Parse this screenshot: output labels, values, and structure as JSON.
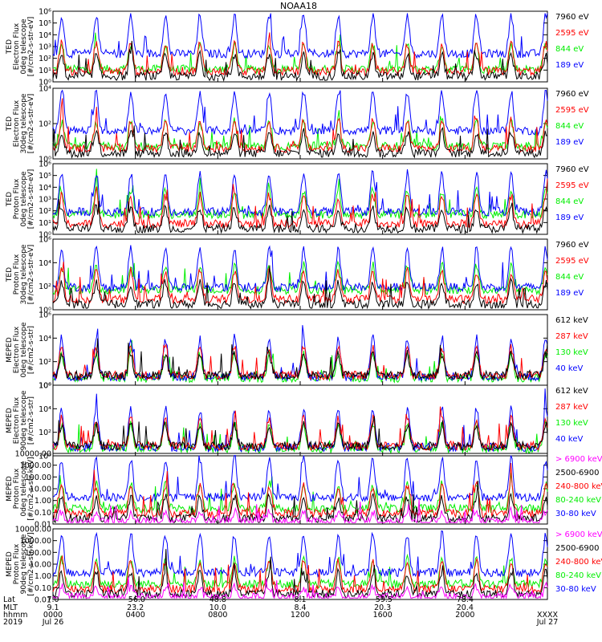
{
  "title": "NOAA18",
  "colors": {
    "black": "#000000",
    "red": "#ff0000",
    "green": "#00ee00",
    "blue": "#0000ff",
    "magenta": "#ff00ff"
  },
  "panels": [
    {
      "ylabel": [
        "TED",
        "Electron Flux",
        "0deg telescope",
        "[#/cm2-s-str-eV]"
      ],
      "yticks": [
        "10⁶",
        "10⁵",
        "10⁴",
        "10³",
        "10²",
        "10¹",
        "10⁰"
      ],
      "legend": [
        {
          "text": "7960 eV",
          "color": "black"
        },
        {
          "text": "2595 eV",
          "color": "red"
        },
        {
          "text": "844 eV",
          "color": "green"
        },
        {
          "text": "189 eV",
          "color": "blue"
        }
      ]
    },
    {
      "ylabel": [
        "TED",
        "Electron Flux",
        "30deg telescope",
        "[#/cm2-s-str-eV]"
      ],
      "yticks": [
        "10⁴",
        "10²",
        "10⁰"
      ],
      "legend": [
        {
          "text": "7960 eV",
          "color": "black"
        },
        {
          "text": "2595 eV",
          "color": "red"
        },
        {
          "text": "844 eV",
          "color": "green"
        },
        {
          "text": "189 eV",
          "color": "blue"
        }
      ]
    },
    {
      "ylabel": [
        "TED",
        "Proton Flux",
        "0deg telescope",
        "[#/cm2-s-str-eV]"
      ],
      "yticks": [
        "10⁶",
        "10⁵",
        "10⁴",
        "10³",
        "10²",
        "10¹",
        "10⁰"
      ],
      "legend": [
        {
          "text": "7960 eV",
          "color": "black"
        },
        {
          "text": "2595 eV",
          "color": "red"
        },
        {
          "text": "844 eV",
          "color": "green"
        },
        {
          "text": "189 eV",
          "color": "blue"
        }
      ]
    },
    {
      "ylabel": [
        "TED",
        "Proton Flux",
        "30deg telescope",
        "[#/cm2-s-str-eV]"
      ],
      "yticks": [
        "10⁶",
        "10⁴",
        "10²",
        "10⁰"
      ],
      "legend": [
        {
          "text": "7960 eV",
          "color": "black"
        },
        {
          "text": "2595 eV",
          "color": "red"
        },
        {
          "text": "844 eV",
          "color": "green"
        },
        {
          "text": "189 eV",
          "color": "blue"
        }
      ]
    },
    {
      "ylabel": [
        "MEPED",
        "Electron Flux",
        "0deg telescope",
        "[#/cm2-s-str]"
      ],
      "yticks": [
        "10⁶",
        "10⁴",
        "10²",
        "10⁰"
      ],
      "legend": [
        {
          "text": "612 keV",
          "color": "black"
        },
        {
          "text": "287 keV",
          "color": "red"
        },
        {
          "text": "130 keV",
          "color": "green"
        },
        {
          "text": "40 keV",
          "color": "blue"
        }
      ]
    },
    {
      "ylabel": [
        "MEPED",
        "Electron Flux",
        "90deg telescope",
        "[#/cm2-s-str]"
      ],
      "yticks": [
        "10⁶",
        "10⁴",
        "10²",
        "10⁰"
      ],
      "legend": [
        {
          "text": "612 keV",
          "color": "black"
        },
        {
          "text": "287 keV",
          "color": "red"
        },
        {
          "text": "130 keV",
          "color": "green"
        },
        {
          "text": "40 keV",
          "color": "blue"
        }
      ]
    },
    {
      "ylabel": [
        "MEPED",
        "Proton Flux",
        "0deg telescope",
        "[#/cm2-s-str-keV]"
      ],
      "yticks": [
        "10000.00",
        "1000.00",
        "100.00",
        "10.00",
        "1.00",
        "0.10",
        "0.01"
      ],
      "legend": [
        {
          "text": "> 6900 keV",
          "color": "magenta"
        },
        {
          "text": "2500-6900",
          "color": "black"
        },
        {
          "text": "240-800 keV",
          "color": "red"
        },
        {
          "text": "80-240 keV",
          "color": "green"
        },
        {
          "text": "30-80 keV",
          "color": "blue"
        }
      ]
    },
    {
      "ylabel": [
        "MEPED",
        "Proton Flux",
        "90deg telescope",
        "[#/cm2-s-str-keV]"
      ],
      "yticks": [
        "10000.00",
        "1000.00",
        "100.00",
        "10.00",
        "1.00",
        "0.10",
        "0.01"
      ],
      "legend": [
        {
          "text": "> 6900 keV",
          "color": "magenta"
        },
        {
          "text": "2500-6900",
          "color": "black"
        },
        {
          "text": "240-800 keV",
          "color": "red"
        },
        {
          "text": "80-240 keV",
          "color": "green"
        },
        {
          "text": "30-80 keV",
          "color": "blue"
        }
      ]
    }
  ],
  "footer": {
    "row_labels": [
      "Lat",
      "MLT",
      "hhmm",
      "2019"
    ],
    "columns": [
      {
        "lat": "7.0",
        "mlt": "9.1",
        "hhmm": "0000",
        "date": "Jul 26"
      },
      {
        "lat": "-56.0",
        "mlt": "23.2",
        "hhmm": "0400",
        "date": ""
      },
      {
        "lat": "48.8",
        "mlt": "10.0",
        "hhmm": "0800",
        "date": ""
      },
      {
        "lat": "8.1",
        "mlt": "8.4",
        "hhmm": "1200",
        "date": ""
      },
      {
        "lat": "-59.5",
        "mlt": "20.3",
        "hhmm": "1600",
        "date": ""
      },
      {
        "lat": "78.4",
        "mlt": "20.4",
        "hhmm": "2000",
        "date": ""
      },
      {
        "lat": "",
        "mlt": "",
        "hhmm": "XXXX",
        "date": "Jul 27"
      }
    ]
  },
  "chart_data": {
    "type": "line",
    "title": "NOAA18",
    "x": [
      "0000",
      "0400",
      "0800",
      "1200",
      "1600",
      "2000",
      "XXXX"
    ],
    "x_date_start": "Jul 26 2019",
    "x_date_end": "Jul 27",
    "yscale": "log",
    "panels": [
      {
        "name": "TED Electron Flux 0deg telescope",
        "ylim": [
          1,
          1000000
        ],
        "series": [
          "7960 eV",
          "2595 eV",
          "844 eV",
          "189 eV"
        ]
      },
      {
        "name": "TED Electron Flux 30deg telescope",
        "ylim": [
          1,
          100000
        ],
        "series": [
          "7960 eV",
          "2595 eV",
          "844 eV",
          "189 eV"
        ]
      },
      {
        "name": "TED Proton Flux 0deg telescope",
        "ylim": [
          1,
          1000000
        ],
        "series": [
          "7960 eV",
          "2595 eV",
          "844 eV",
          "189 eV"
        ]
      },
      {
        "name": "TED Proton Flux 30deg telescope",
        "ylim": [
          1,
          1000000
        ],
        "series": [
          "7960 eV",
          "2595 eV",
          "844 eV",
          "189 eV"
        ]
      },
      {
        "name": "MEPED Electron Flux 0deg telescope",
        "ylim": [
          1,
          1000000
        ],
        "series": [
          "612 keV",
          "287 keV",
          "130 keV",
          "40 keV"
        ]
      },
      {
        "name": "MEPED Electron Flux 90deg telescope",
        "ylim": [
          1,
          1000000
        ],
        "series": [
          "612 keV",
          "287 keV",
          "130 keV",
          "40 keV"
        ]
      },
      {
        "name": "MEPED Proton Flux 0deg telescope",
        "ylim": [
          0.01,
          10000
        ],
        "series": [
          "> 6900 keV",
          "2500-6900",
          "240-800 keV",
          "80-240 keV",
          "30-80 keV"
        ]
      },
      {
        "name": "MEPED Proton Flux 90deg telescope",
        "ylim": [
          0.01,
          10000
        ],
        "series": [
          "> 6900 keV",
          "2500-6900",
          "240-800 keV",
          "80-240 keV",
          "30-80 keV"
        ]
      }
    ]
  }
}
